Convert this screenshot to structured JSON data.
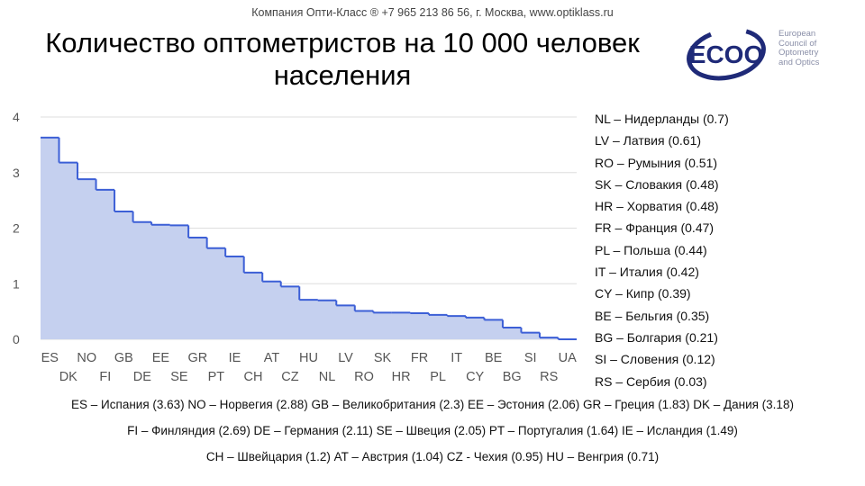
{
  "header": {
    "company_line": "Компания Опти-Класс ® +7 965 213 86 56, г. Москва, www.optiklass.ru",
    "title_line1": "Количество оптометристов на 10 000 человек",
    "title_line2": "населения"
  },
  "logo": {
    "text": "ECOO",
    "caption": [
      "European",
      "Council of",
      "Optometry",
      "and Optics"
    ],
    "color": "#1f2a78"
  },
  "colors": {
    "fill": "#c5d0ef",
    "line": "#3c5fd6",
    "grid": "#dedede"
  },
  "chart_data": {
    "type": "area",
    "step": true,
    "categories": [
      "ES",
      "DK",
      "NO",
      "FI",
      "GB",
      "DE",
      "EE",
      "SE",
      "GR",
      "PT",
      "IE",
      "CH",
      "AT",
      "CZ",
      "HU",
      "NL",
      "LV",
      "RO",
      "SK",
      "HR",
      "FR",
      "PL",
      "IT",
      "CY",
      "BE",
      "BG",
      "SI",
      "RS",
      "UA"
    ],
    "values": [
      3.63,
      3.18,
      2.88,
      2.69,
      2.3,
      2.11,
      2.06,
      2.05,
      1.83,
      1.64,
      1.49,
      1.2,
      1.04,
      0.95,
      0.71,
      0.7,
      0.61,
      0.51,
      0.48,
      0.48,
      0.47,
      0.44,
      0.42,
      0.39,
      0.35,
      0.21,
      0.12,
      0.03,
      0.0
    ],
    "y_ticks": [
      "0",
      "1",
      "2",
      "3",
      "4"
    ],
    "ylim": [
      0,
      4
    ],
    "grid": true
  },
  "legend_right": [
    "NL – Нидерланды (0.7)",
    "LV – Латвия (0.61)",
    "RO – Румыния (0.51)",
    "SK – Словакия (0.48)",
    "HR – Хорватия (0.48)",
    "FR – Франция (0.47)",
    "PL – Польша (0.44)",
    "IT – Италия (0.42)",
    "CY – Кипр (0.39)",
    "BE – Бельгия (0.35)",
    "BG – Болгария (0.21)",
    "SI – Словения (0.12)",
    "RS – Сербия (0.03)"
  ],
  "legend_bottom": [
    "ES – Испания (3.63) NO – Норвегия (2.88) GB – Великобритания (2.3) EE – Эстония (2.06) GR – Греция (1.83) DK – Дания (3.18)",
    "FI – Финляндия (2.69) DE – Германия (2.11) SE – Швеция (2.05) PT – Португалия (1.64) IE – Исландия (1.49)",
    "CH – Швейцария (1.2) AT – Австрия (1.04) CZ - Чехия (0.95) HU – Венгрия (0.71)"
  ]
}
